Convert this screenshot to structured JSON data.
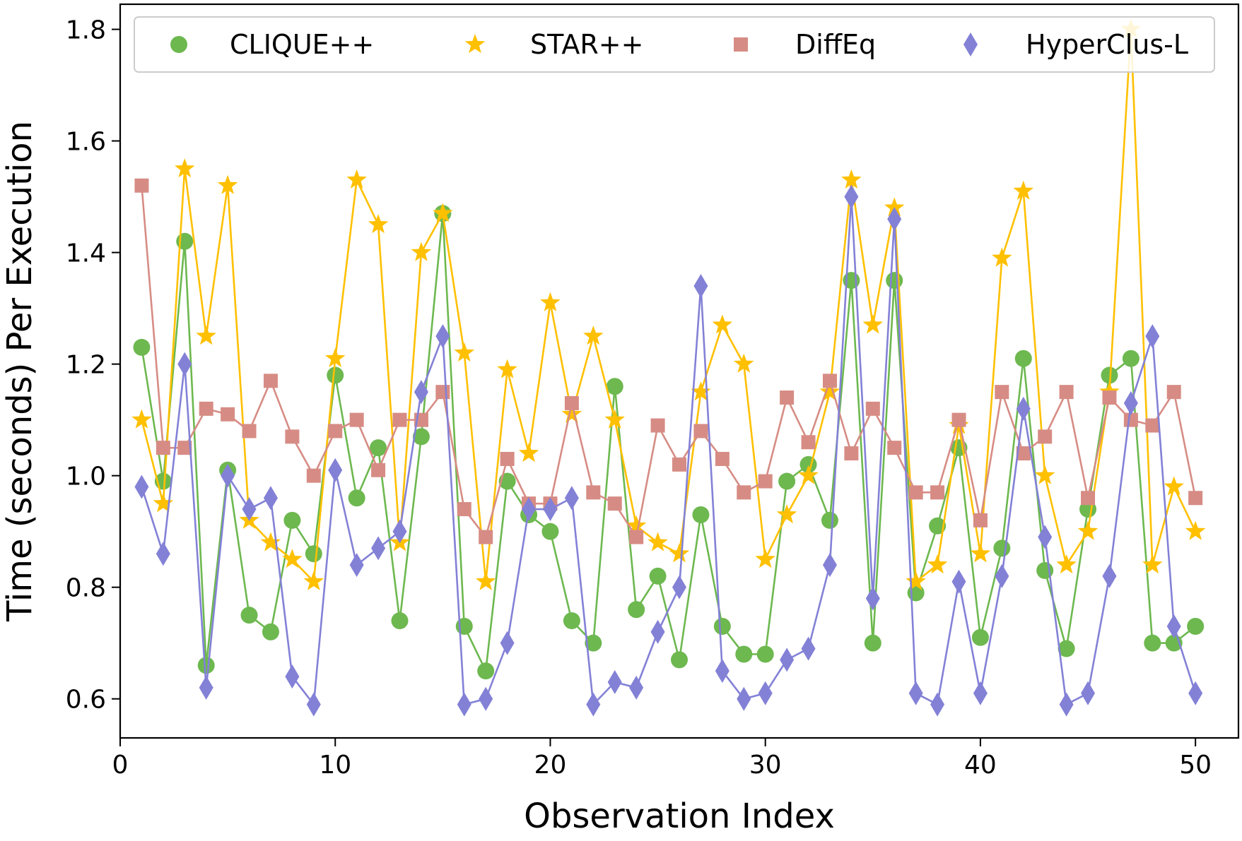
{
  "chart_data": {
    "type": "line",
    "title": "",
    "xlabel": "Observation Index",
    "ylabel": "Time (seconds) Per Execution",
    "xlim": [
      0,
      52
    ],
    "ylim": [
      0.53,
      1.845
    ],
    "xticks": [
      0,
      10,
      20,
      30,
      40,
      50
    ],
    "yticks": [
      0.6,
      0.8,
      1.0,
      1.2,
      1.4,
      1.6,
      1.8
    ],
    "xtick_labels": [
      "0",
      "10",
      "20",
      "30",
      "40",
      "50"
    ],
    "ytick_labels": [
      "0.6",
      "0.8",
      "1.0",
      "1.2",
      "1.4",
      "1.6",
      "1.8"
    ],
    "grid": false,
    "legend_position": "top",
    "x": [
      1,
      2,
      3,
      4,
      5,
      6,
      7,
      8,
      9,
      10,
      11,
      12,
      13,
      14,
      15,
      16,
      17,
      18,
      19,
      20,
      21,
      22,
      23,
      24,
      25,
      26,
      27,
      28,
      29,
      30,
      31,
      32,
      33,
      34,
      35,
      36,
      37,
      38,
      39,
      40,
      41,
      42,
      43,
      44,
      45,
      46,
      47,
      48,
      49,
      50
    ],
    "series": [
      {
        "name": "CLIQUE++",
        "color": "#6db84f",
        "marker": "circle",
        "values": [
          1.23,
          0.99,
          1.42,
          0.66,
          1.01,
          0.75,
          0.72,
          0.92,
          0.86,
          1.18,
          0.96,
          1.05,
          0.74,
          1.07,
          1.47,
          0.73,
          0.65,
          0.99,
          0.93,
          0.9,
          0.74,
          0.7,
          1.16,
          0.76,
          0.82,
          0.67,
          0.93,
          0.73,
          0.68,
          0.68,
          0.99,
          1.02,
          0.92,
          1.35,
          0.7,
          1.35,
          0.79,
          0.91,
          1.05,
          0.71,
          0.87,
          1.21,
          0.83,
          0.69,
          0.94,
          1.18,
          1.21,
          0.7,
          0.7,
          0.73
        ]
      },
      {
        "name": "STAR++",
        "color": "#ffc000",
        "marker": "star",
        "values": [
          1.1,
          0.95,
          1.55,
          1.25,
          1.52,
          0.92,
          0.88,
          0.85,
          0.81,
          1.21,
          1.53,
          1.45,
          0.88,
          1.4,
          1.47,
          1.22,
          0.81,
          1.19,
          1.04,
          1.31,
          1.11,
          1.25,
          1.1,
          0.91,
          0.88,
          0.86,
          1.15,
          1.27,
          1.2,
          0.85,
          0.93,
          1.0,
          1.15,
          1.53,
          1.27,
          1.48,
          0.81,
          0.84,
          1.09,
          0.86,
          1.39,
          1.51,
          1.0,
          0.84,
          0.9,
          1.15,
          1.8,
          0.84,
          0.98,
          0.9
        ]
      },
      {
        "name": "DiffEq",
        "color": "#d68c84",
        "marker": "square",
        "values": [
          1.52,
          1.05,
          1.05,
          1.12,
          1.11,
          1.08,
          1.17,
          1.07,
          1.0,
          1.08,
          1.1,
          1.01,
          1.1,
          1.1,
          1.15,
          0.94,
          0.89,
          1.03,
          0.95,
          0.95,
          1.13,
          0.97,
          0.95,
          0.89,
          1.09,
          1.02,
          1.08,
          1.03,
          0.97,
          0.99,
          1.14,
          1.06,
          1.17,
          1.04,
          1.12,
          1.05,
          0.97,
          0.97,
          1.1,
          0.92,
          1.15,
          1.04,
          1.07,
          1.15,
          0.96,
          1.14,
          1.1,
          1.09,
          1.15,
          0.96
        ]
      },
      {
        "name": "HyperClus-L",
        "color": "#8381d6",
        "marker": "diamond",
        "values": [
          0.98,
          0.86,
          1.2,
          0.62,
          1.0,
          0.94,
          0.96,
          0.64,
          0.59,
          1.01,
          0.84,
          0.87,
          0.9,
          1.15,
          1.25,
          0.59,
          0.6,
          0.7,
          0.94,
          0.94,
          0.96,
          0.59,
          0.63,
          0.62,
          0.72,
          0.8,
          1.34,
          0.65,
          0.6,
          0.61,
          0.67,
          0.69,
          0.84,
          1.5,
          0.78,
          1.46,
          0.61,
          0.59,
          0.81,
          0.61,
          0.82,
          1.12,
          0.89,
          0.59,
          0.61,
          0.82,
          1.13,
          1.25,
          0.73,
          0.61
        ]
      }
    ]
  }
}
